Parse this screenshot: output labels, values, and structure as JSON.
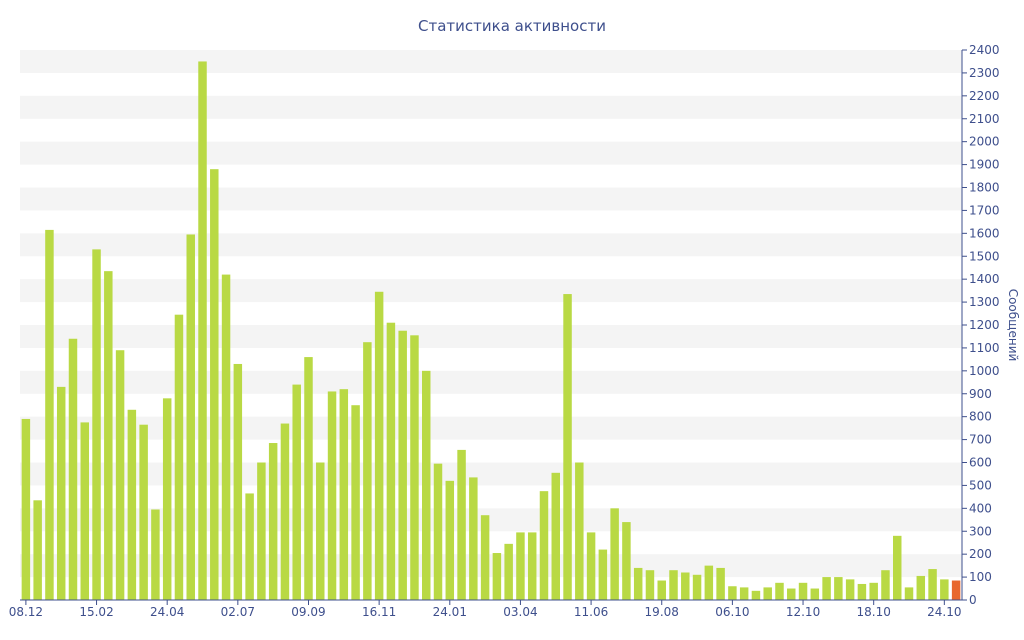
{
  "chart_data": {
    "type": "bar",
    "title": "Статистика активности",
    "ylabel": "Сообщений",
    "xlabel": "",
    "ylim": [
      0,
      2400
    ],
    "y_ticks": [
      0,
      100,
      200,
      300,
      400,
      500,
      600,
      700,
      800,
      900,
      1000,
      1100,
      1200,
      1300,
      1400,
      1500,
      1600,
      1700,
      1800,
      1900,
      2000,
      2100,
      2200,
      2300,
      2400
    ],
    "x_tick_labels": [
      "08.12",
      "15.02",
      "24.04",
      "02.07",
      "09.09",
      "16.11",
      "24.01",
      "03.04",
      "11.06",
      "19.08",
      "06.10",
      "12.10",
      "18.10",
      "24.10"
    ],
    "x_tick_bar_index": [
      0,
      6,
      12,
      18,
      24,
      30,
      36,
      42,
      48,
      54,
      60,
      66,
      72,
      78
    ],
    "values": [
      790,
      435,
      1615,
      930,
      1140,
      775,
      1530,
      1435,
      1090,
      830,
      765,
      395,
      880,
      1245,
      1595,
      2350,
      1880,
      1420,
      1030,
      465,
      600,
      685,
      770,
      940,
      1060,
      600,
      910,
      920,
      850,
      1125,
      1345,
      1210,
      1175,
      1155,
      1000,
      595,
      520,
      655,
      535,
      370,
      205,
      245,
      295,
      295,
      475,
      555,
      1335,
      600,
      295,
      220,
      400,
      340,
      140,
      130,
      85,
      130,
      120,
      110,
      150,
      140,
      60,
      55,
      40,
      55,
      75,
      50,
      75,
      50,
      100,
      100,
      90,
      70,
      75,
      130,
      280,
      55,
      105,
      135,
      90,
      85
    ],
    "bar_colors": {
      "default": "#b9d944",
      "highlight": "#e8672e"
    },
    "highlight_index": 79,
    "grid": "horizontal-bands",
    "y_axis_position": "right"
  }
}
